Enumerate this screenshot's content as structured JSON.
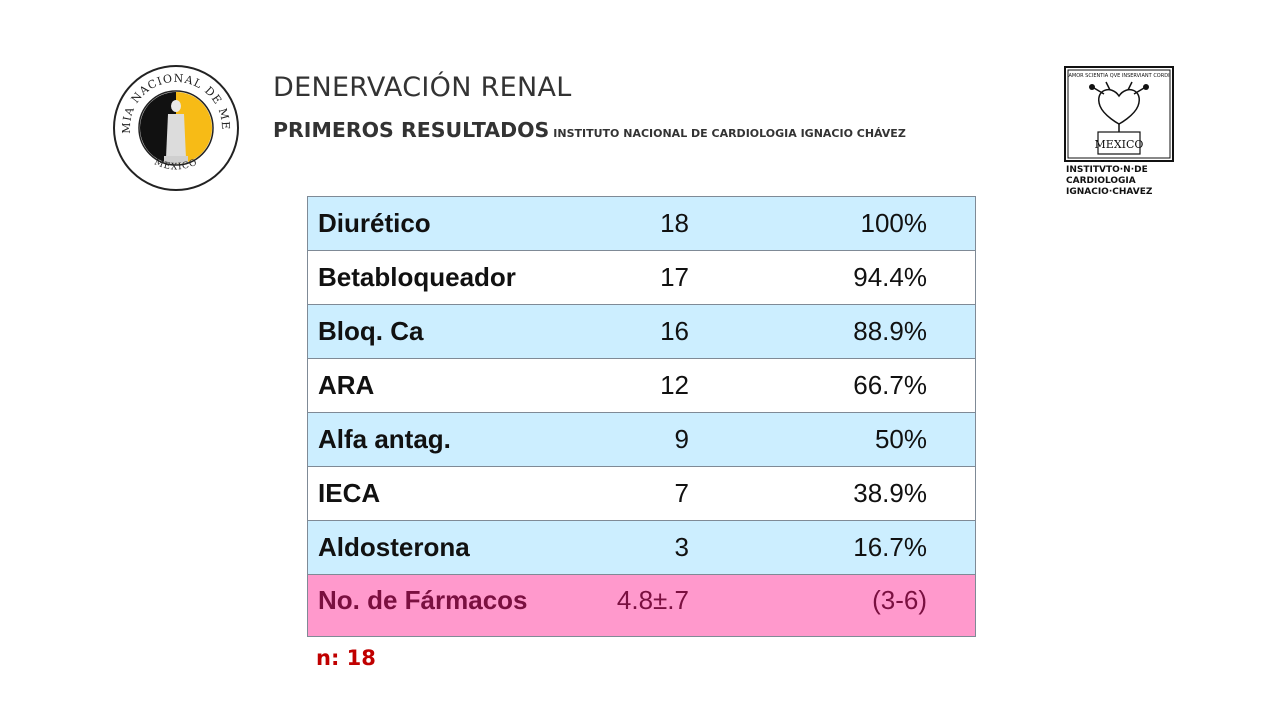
{
  "header": {
    "title": "DENERVACIÓN RENAL",
    "subtitle": "PRIMEROS RESULTADOS",
    "institution": "INSTITUTO NACIONAL DE CARDIOLOGIA IGNACIO CHÁVEZ"
  },
  "logos": {
    "left": {
      "ring_text": "ACADEMIA NACIONAL DE MEDICINA",
      "bottom_text": "MEXICO"
    },
    "right": {
      "motto": "AMOR SCIENTIA QVE INSERVIANT CORDI",
      "country": "MEXICO",
      "line1": "INSTITVTO·N·DE",
      "line2": "CARDIOLOGIA",
      "line3": "IGNACIO·CHAVEZ"
    }
  },
  "table": {
    "rows": [
      {
        "name": "Diurético",
        "count": "18",
        "pct": "100%"
      },
      {
        "name": "Betabloqueador",
        "count": "17",
        "pct": "94.4%"
      },
      {
        "name": "Bloq. Ca",
        "count": "16",
        "pct": "88.9%"
      },
      {
        "name": "ARA",
        "count": "12",
        "pct": "66.7%"
      },
      {
        "name": "Alfa antag.",
        "count": "9",
        "pct": "50%"
      },
      {
        "name": "IECA",
        "count": "7",
        "pct": "38.9%"
      },
      {
        "name": "Aldosterona",
        "count": "3",
        "pct": "16.7%"
      }
    ],
    "total": {
      "name": "No. de Fármacos",
      "count": "4.8±.7",
      "pct": "(3-6)"
    }
  },
  "footer": {
    "note": "n:  18"
  },
  "colors": {
    "row_blue": "#cceeff",
    "row_white": "#ffffff",
    "total_pink": "#ff99cc",
    "total_text": "#7a1040",
    "note_red": "#c00000"
  }
}
